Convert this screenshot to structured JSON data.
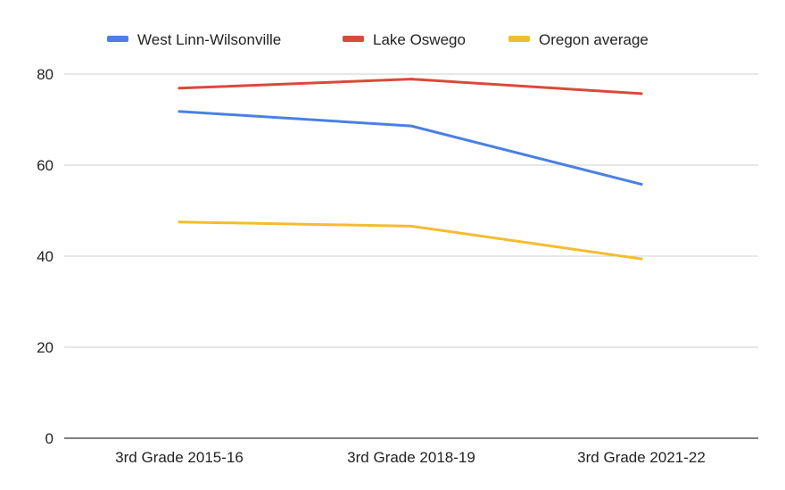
{
  "chart_data": {
    "type": "line",
    "title": "",
    "xlabel": "",
    "ylabel": "",
    "categories": [
      "3rd Grade 2015-16",
      "3rd Grade 2018-19",
      "3rd Grade 2021-22"
    ],
    "ylim": [
      0,
      80
    ],
    "yticks": [
      0,
      20,
      40,
      60,
      80
    ],
    "grid": true,
    "legend": "top-center",
    "series": [
      {
        "name": "West Linn-Wilsonville",
        "color": "#4a7fe6",
        "values": [
          71.8,
          68.6,
          55.8
        ]
      },
      {
        "name": "Lake Oswego",
        "color": "#d94a3a",
        "values": [
          76.9,
          78.9,
          75.7
        ]
      },
      {
        "name": "Oregon average",
        "color": "#f4bc2e",
        "values": [
          47.5,
          46.6,
          39.4
        ]
      }
    ]
  }
}
